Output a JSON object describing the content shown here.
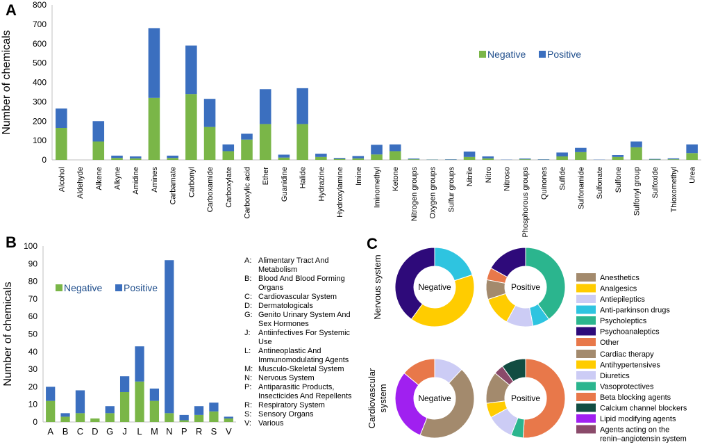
{
  "colors": {
    "negative": "#7ab648",
    "positive": "#3b6fbf",
    "axis": "#bfbfbf",
    "legend_text": "#1f4e8c"
  },
  "chart_data": [
    {
      "panel": "A",
      "type": "bar",
      "stacked": true,
      "ylabel": "Number of chemicals",
      "xlabel": "",
      "ylim": [
        0,
        800
      ],
      "yticks": [
        0,
        100,
        200,
        300,
        400,
        500,
        600,
        700,
        800
      ],
      "legend_position": "top-right",
      "categories": [
        "Alcohol",
        "Aldehyde",
        "Alkene",
        "Alkyne",
        "Amidine",
        "Amines",
        "Carbamate",
        "Carbonyl",
        "Carboxamide",
        "Carboxylate",
        "Carboxylic acid",
        "Ether",
        "Guanidine",
        "Halide",
        "Hydrazine",
        "Hydroxylamine",
        "Imine",
        "Iminomethyl",
        "Ketone",
        "Nitrogen groups",
        "Oxygen groups",
        "Sulfur groups",
        "Nitrile",
        "Nitro",
        "Nitroso",
        "Phosphorous groups",
        "Quinones",
        "Sulfide",
        "Sulfonamide",
        "Sulfonate",
        "Sulfone",
        "Sulfonyl group",
        "Sulfoxide",
        "Thioxomethyl",
        "Urea"
      ],
      "series": [
        {
          "name": "Negative",
          "values": [
            165,
            0,
            95,
            10,
            8,
            320,
            10,
            340,
            170,
            45,
            105,
            185,
            12,
            185,
            15,
            5,
            8,
            28,
            45,
            3,
            1,
            1,
            15,
            8,
            0,
            3,
            1,
            18,
            40,
            0,
            15,
            65,
            2,
            3,
            35
          ]
        },
        {
          "name": "Positive",
          "values": [
            100,
            0,
            105,
            12,
            10,
            360,
            12,
            250,
            145,
            35,
            30,
            180,
            15,
            185,
            17,
            5,
            12,
            50,
            35,
            4,
            1,
            2,
            28,
            10,
            1,
            4,
            2,
            20,
            22,
            1,
            10,
            30,
            3,
            5,
            45
          ]
        }
      ]
    },
    {
      "panel": "B",
      "type": "bar",
      "stacked": true,
      "ylabel": "Number of chemicals",
      "xlabel": "",
      "ylim": [
        0,
        100
      ],
      "yticks": [
        0,
        10,
        20,
        30,
        40,
        50,
        60,
        70,
        80,
        90,
        100
      ],
      "legend_position": "top-left",
      "categories": [
        "A",
        "B",
        "C",
        "D",
        "G",
        "J",
        "L",
        "M",
        "N",
        "P",
        "R",
        "S",
        "V"
      ],
      "series": [
        {
          "name": "Negative",
          "values": [
            12,
            3,
            5,
            2,
            5,
            17,
            23,
            12,
            5,
            1,
            4,
            6,
            2
          ]
        },
        {
          "name": "Positive",
          "values": [
            8,
            2,
            13,
            0,
            4,
            9,
            20,
            7,
            87,
            3,
            5,
            5,
            1
          ]
        }
      ],
      "atc_key": [
        {
          "code": "A:",
          "line1": "Alimentary Tract And",
          "line2": "Metabolism"
        },
        {
          "code": "B:",
          "line1": "Blood And Blood Forming",
          "line2": "Organs"
        },
        {
          "code": "C:",
          "line1": "Cardiovascular System",
          "line2": ""
        },
        {
          "code": "D:",
          "line1": "Dermatologicals",
          "line2": ""
        },
        {
          "code": "G:",
          "line1": "Genito Urinary System And",
          "line2": "Sex Hormones"
        },
        {
          "code": "J:",
          "line1": "Antiinfectives For Systemic",
          "line2": "Use"
        },
        {
          "code": "L:",
          "line1": "Antineoplastic And",
          "line2": "Immunomodulating Agents"
        },
        {
          "code": "M:",
          "line1": "Musculo-Skeletal System",
          "line2": ""
        },
        {
          "code": "N:",
          "line1": "Nervous System",
          "line2": ""
        },
        {
          "code": "P:",
          "line1": "Antiparasitic Products,",
          "line2": "Insecticides And Repellents"
        },
        {
          "code": "R:",
          "line1": "Respiratory System",
          "line2": ""
        },
        {
          "code": "S:",
          "line1": "Sensory Organs",
          "line2": ""
        },
        {
          "code": "V:",
          "line1": "Various",
          "line2": ""
        }
      ]
    },
    {
      "panel": "C",
      "type": "pie",
      "donut": true,
      "groups": [
        {
          "row_label": "Nervous system",
          "legend": [
            {
              "name": "Anesthetics",
              "color": "#a38a6d"
            },
            {
              "name": "Analgesics",
              "color": "#ffcc00"
            },
            {
              "name": "Antiepileptics",
              "color": "#ccccf5"
            },
            {
              "name": "Anti-parkinson drugs",
              "color": "#2ec4e0"
            },
            {
              "name": "Psycholeptics",
              "color": "#2bb58e"
            },
            {
              "name": "Psychoanaleptics",
              "color": "#2e0a7a"
            },
            {
              "name": "Other",
              "color": "#e8784a"
            }
          ],
          "charts": [
            {
              "label": "Negative",
              "slices": [
                {
                  "name": "Anti-parkinson drugs",
                  "value": 20
                },
                {
                  "name": "Analgesics",
                  "value": 40
                },
                {
                  "name": "Psychoanaleptics",
                  "value": 40
                }
              ]
            },
            {
              "label": "Positive",
              "slices": [
                {
                  "name": "Psycholeptics",
                  "value": 40
                },
                {
                  "name": "Anti-parkinson drugs",
                  "value": 7
                },
                {
                  "name": "Antiepileptics",
                  "value": 11
                },
                {
                  "name": "Analgesics",
                  "value": 12
                },
                {
                  "name": "Anesthetics",
                  "value": 8
                },
                {
                  "name": "Other",
                  "value": 5
                },
                {
                  "name": "Psychoanaleptics",
                  "value": 17
                }
              ]
            }
          ]
        },
        {
          "row_label": "Cardiovascular system",
          "legend": [
            {
              "name": "Cardiac therapy",
              "color": "#a38a6d"
            },
            {
              "name": "Antihypertensives",
              "color": "#ffcc00"
            },
            {
              "name": "Diuretics",
              "color": "#ccccf5"
            },
            {
              "name": "Vasoprotectives",
              "color": "#2bb58e"
            },
            {
              "name": "Beta blocking agents",
              "color": "#e8784a"
            },
            {
              "name": "Calcium channel blockers",
              "color": "#124d42"
            },
            {
              "name": "Lipid modifying agents",
              "color": "#a020f0"
            },
            {
              "name": "Agents acting on the renin–angiotensin system",
              "color": "#8a4a6a"
            }
          ],
          "charts": [
            {
              "label": "Negative",
              "slices": [
                {
                  "name": "Diuretics",
                  "value": 12
                },
                {
                  "name": "Cardiac therapy",
                  "value": 44
                },
                {
                  "name": "Lipid modifying agents",
                  "value": 30
                },
                {
                  "name": "Beta blocking agents",
                  "value": 14
                }
              ]
            },
            {
              "label": "Positive",
              "slices": [
                {
                  "name": "Beta blocking agents",
                  "value": 51
                },
                {
                  "name": "Vasoprotectives",
                  "value": 5
                },
                {
                  "name": "Diuretics",
                  "value": 11
                },
                {
                  "name": "Antihypertensives",
                  "value": 6
                },
                {
                  "name": "Cardiac therapy",
                  "value": 13
                },
                {
                  "name": "Agents acting on the renin–angiotensin system",
                  "value": 4
                },
                {
                  "name": "Calcium channel blockers",
                  "value": 10
                }
              ]
            }
          ]
        }
      ]
    }
  ]
}
